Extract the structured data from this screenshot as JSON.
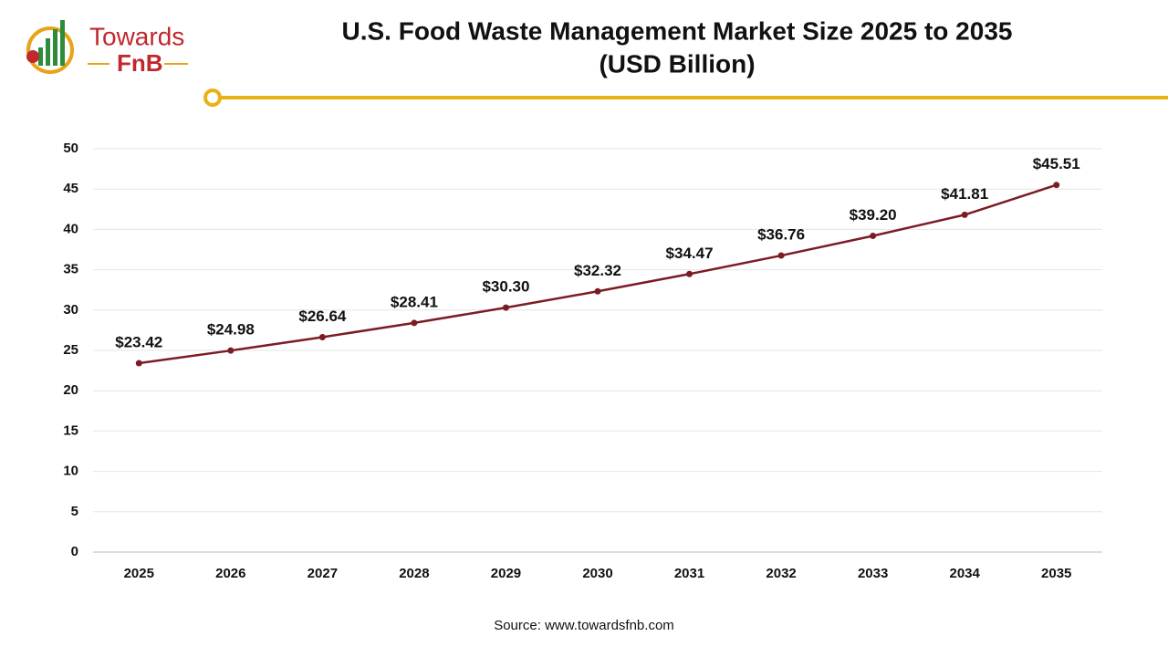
{
  "logo": {
    "line1": "Towards",
    "line2": "FnB"
  },
  "chart_data": {
    "type": "line",
    "title": "U.S. Food Waste Management Market Size 2025 to 2035",
    "subtitle": "(USD Billion)",
    "categories": [
      "2025",
      "2026",
      "2027",
      "2028",
      "2029",
      "2030",
      "2031",
      "2032",
      "2033",
      "2034",
      "2035"
    ],
    "values": [
      23.42,
      24.98,
      26.64,
      28.41,
      30.3,
      32.32,
      34.47,
      36.76,
      39.2,
      41.81,
      45.51
    ],
    "value_labels": [
      "$23.42",
      "$24.98",
      "$26.64",
      "$28.41",
      "$30.30",
      "$32.32",
      "$34.47",
      "$36.76",
      "$39.20",
      "$41.81",
      "$45.51"
    ],
    "color": "#7b1c24",
    "ylim": [
      0,
      50
    ],
    "yticks": [
      0,
      5,
      10,
      15,
      20,
      25,
      30,
      35,
      40,
      45,
      50
    ],
    "grid": true,
    "source": "Source: www.towardsfnb.com"
  }
}
